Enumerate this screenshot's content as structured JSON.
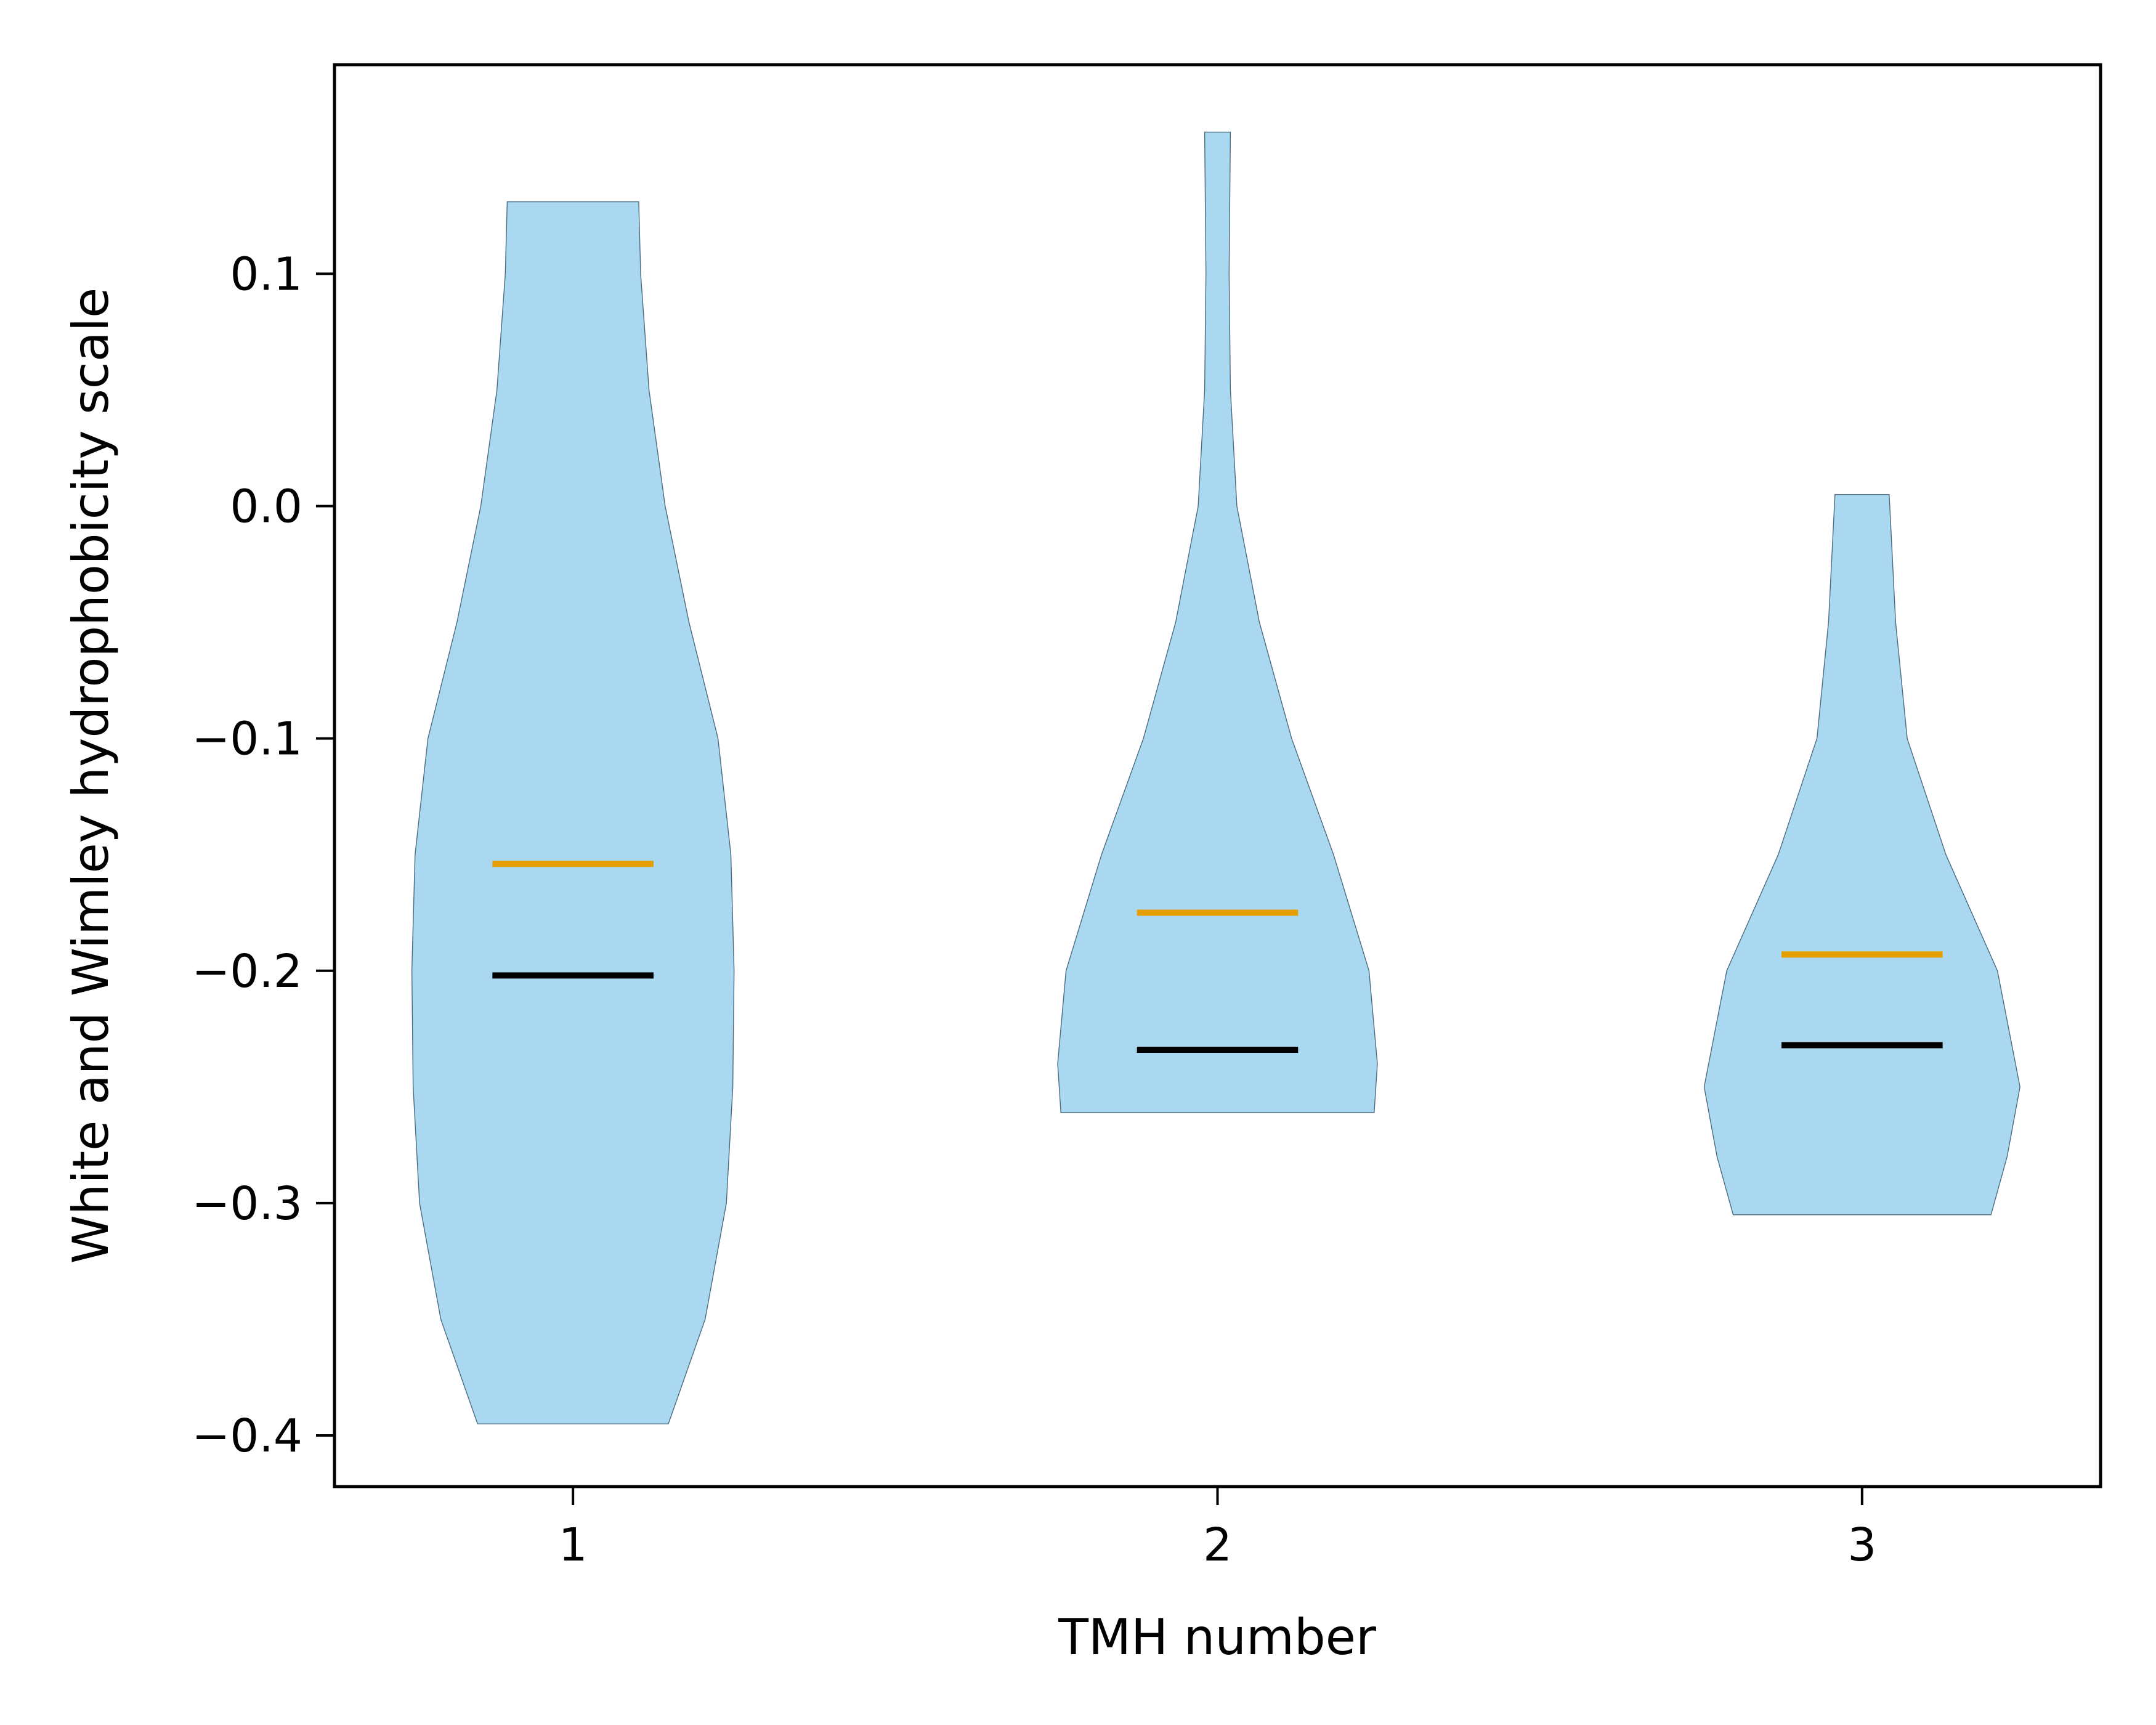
{
  "chart_data": {
    "type": "violin",
    "x": [
      1,
      2,
      3
    ],
    "xlabel": "TMH number",
    "ylabel": "White and Wimley hydrophobicity scale",
    "xlim": [
      0.63,
      3.37
    ],
    "ylim": [
      -0.422,
      0.19
    ],
    "x_ticks": [
      "1",
      "2",
      "3"
    ],
    "y_ticks": [
      0.1,
      0.0,
      -0.1,
      -0.2,
      -0.3,
      -0.4
    ],
    "y_tick_labels": [
      "0.1",
      "0.0",
      "−0.1",
      "−0.2",
      "−0.3",
      "−0.4"
    ],
    "grid": false,
    "colors": {
      "body": "#abd8f1",
      "mean": "#e69f00",
      "median": "#000000"
    },
    "violins": [
      {
        "position": 1,
        "min": -0.395,
        "max": 0.131,
        "mean": -0.154,
        "median": -0.202,
        "profile": [
          [
            -0.395,
            0.148
          ],
          [
            -0.35,
            0.205
          ],
          [
            -0.3,
            0.238
          ],
          [
            -0.25,
            0.248
          ],
          [
            -0.2,
            0.25
          ],
          [
            -0.15,
            0.245
          ],
          [
            -0.1,
            0.225
          ],
          [
            -0.05,
            0.18
          ],
          [
            0.0,
            0.143
          ],
          [
            0.05,
            0.118
          ],
          [
            0.1,
            0.105
          ],
          [
            0.131,
            0.102
          ]
        ]
      },
      {
        "position": 2,
        "min": -0.261,
        "max": 0.161,
        "mean": -0.175,
        "median": -0.234,
        "profile": [
          [
            -0.261,
            0.243
          ],
          [
            -0.24,
            0.248
          ],
          [
            -0.2,
            0.235
          ],
          [
            -0.15,
            0.18
          ],
          [
            -0.1,
            0.115
          ],
          [
            -0.05,
            0.065
          ],
          [
            0.0,
            0.03
          ],
          [
            0.05,
            0.02
          ],
          [
            0.1,
            0.018
          ],
          [
            0.161,
            0.02
          ]
        ]
      },
      {
        "position": 3,
        "min": -0.305,
        "max": 0.005,
        "mean": -0.193,
        "median": -0.232,
        "profile": [
          [
            -0.305,
            0.2
          ],
          [
            -0.28,
            0.225
          ],
          [
            -0.25,
            0.245
          ],
          [
            -0.2,
            0.21
          ],
          [
            -0.15,
            0.13
          ],
          [
            -0.1,
            0.07
          ],
          [
            -0.05,
            0.052
          ],
          [
            0.0,
            0.043
          ],
          [
            0.005,
            0.042
          ]
        ]
      }
    ]
  }
}
